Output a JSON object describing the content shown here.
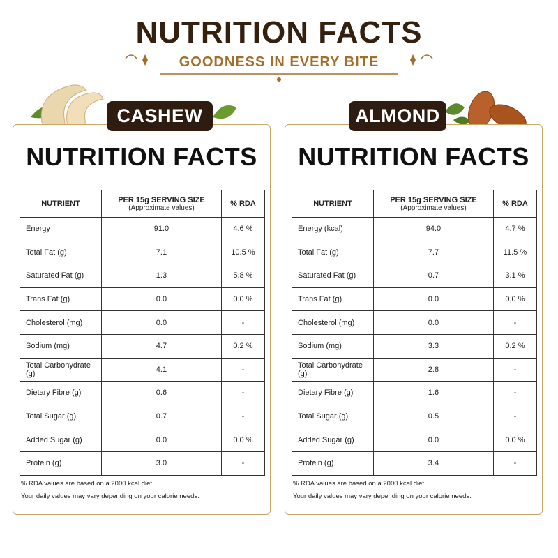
{
  "header": {
    "title": "NUTRITION FACTS",
    "subtitle": "GOODNESS IN EVERY BITE"
  },
  "panels": [
    {
      "label": "CASHEW",
      "title": "NUTRITION FACTS",
      "table": {
        "header": [
          "NUTRIENT",
          [
            "PER 15g SERVING SIZE",
            "(Approximate values)"
          ],
          "% RDA"
        ],
        "rows": [
          [
            "Energy",
            "91.0",
            "4.6 %"
          ],
          [
            "Total Fat (g)",
            "7.1",
            "10.5 %"
          ],
          [
            "Saturated Fat (g)",
            "1.3",
            "5.8 %"
          ],
          [
            "Trans Fat (g)",
            "0.0",
            "0.0 %"
          ],
          [
            "Cholesterol (mg)",
            "0.0",
            "-"
          ],
          [
            "Sodium (mg)",
            "4.7",
            "0.2 %"
          ],
          [
            "Total Carbohydrate (g)",
            "4.1",
            "-"
          ],
          [
            "Dietary Fibre (g)",
            "0.6",
            "-"
          ],
          [
            "Total Sugar (g)",
            "0.7",
            "-"
          ],
          [
            "Added Sugar (g)",
            "0.0",
            "0.0 %"
          ],
          [
            "Protein (g)",
            "3.0",
            "-"
          ]
        ]
      },
      "footnotes": [
        "% RDA values are based on a 2000 kcal diet.",
        "Your daily values may vary depending on your calorie needs."
      ]
    },
    {
      "label": "ALMOND",
      "title": "NUTRITION FACTS",
      "table": {
        "header": [
          "NUTRIENT",
          [
            "PER 15g SERVING SIZE",
            "(Approximate values)"
          ],
          "% RDA"
        ],
        "rows": [
          [
            "Energy (kcal)",
            "94.0",
            "4.7 %"
          ],
          [
            "Total Fat (g)",
            "7.7",
            "11.5 %"
          ],
          [
            "Saturated Fat (g)",
            "0.7",
            "3.1 %"
          ],
          [
            "Trans Fat (g)",
            "0.0",
            "0,0 %"
          ],
          [
            "Cholesterol (mg)",
            "0.0",
            "-"
          ],
          [
            "Sodium (mg)",
            "3.3",
            "0.2 %"
          ],
          [
            "Total Carbohydrate (g)",
            "2.8",
            "-"
          ],
          [
            "Dietary Fibre (g)",
            "1.6",
            "-"
          ],
          [
            "Total Sugar (g)",
            "0.5",
            "-"
          ],
          [
            "Added Sugar (g)",
            "0.0",
            "0.0 %"
          ],
          [
            "Protein (g)",
            "3.4",
            "-"
          ]
        ]
      },
      "footnotes": [
        "% RDA values are based on a 2000 kcal diet.",
        "Your daily values may vary depending on your calorie needs."
      ]
    }
  ]
}
